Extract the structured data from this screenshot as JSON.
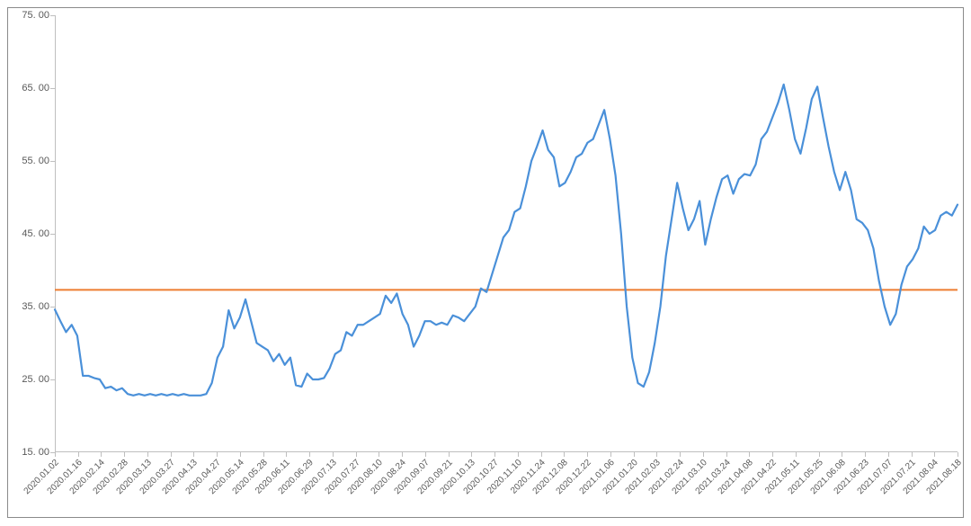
{
  "chart": {
    "type": "line",
    "background_color": "#ffffff",
    "border_color": "#8a8a8a",
    "axis_color": "#bfbfbf",
    "label_color": "#595959",
    "label_fontsize": 11,
    "xlabel_fontsize": 10,
    "ylim": [
      15.0,
      75.0
    ],
    "ytick_step": 10.0,
    "ytick_labels": [
      "15. 00",
      "25. 00",
      "35. 00",
      "45. 00",
      "55. 00",
      "65. 00",
      "75. 00"
    ],
    "ytick_values": [
      15,
      25,
      35,
      45,
      55,
      65,
      75
    ],
    "x_labels": [
      "2020.01.02",
      "2020.01.16",
      "2020.02.14",
      "2020.02.28",
      "2020.03.13",
      "2020.03.27",
      "2020.04.13",
      "2020.04.27",
      "2020.05.14",
      "2020.05.28",
      "2020.06.11",
      "2020.06.29",
      "2020.07.13",
      "2020.07.27",
      "2020.08.10",
      "2020.08.24",
      "2020.09.07",
      "2020.09.21",
      "2020.10.13",
      "2020.10.27",
      "2020.11.10",
      "2020.11.24",
      "2020.12.08",
      "2020.12.22",
      "2021.01.06",
      "2021.01.20",
      "2021.02.03",
      "2021.02.24",
      "2021.03.10",
      "2021.03.24",
      "2021.04.08",
      "2021.04.22",
      "2021.05.11",
      "2021.05.25",
      "2021.06.08",
      "2021.06.23",
      "2021.07.07",
      "2021.07.21",
      "2021.08.04",
      "2021.08.18"
    ],
    "reference_line": {
      "value": 37.3,
      "color": "#ed7d31",
      "width": 2
    },
    "series": {
      "color": "#4a90d9",
      "width": 2.2,
      "values": [
        34.6,
        33.0,
        31.5,
        32.5,
        31.0,
        25.5,
        25.5,
        25.2,
        25.0,
        23.8,
        24.0,
        23.5,
        23.8,
        23.0,
        22.8,
        23.0,
        22.8,
        23.0,
        22.8,
        23.0,
        22.8,
        23.0,
        22.8,
        23.0,
        22.8,
        22.8,
        22.8,
        23.0,
        24.5,
        28.0,
        29.5,
        34.5,
        32.0,
        33.5,
        36.0,
        33.0,
        30.0,
        29.5,
        29.0,
        27.5,
        28.5,
        27.0,
        28.0,
        24.2,
        24.0,
        25.8,
        25.0,
        25.0,
        25.2,
        26.5,
        28.5,
        29.0,
        31.5,
        31.0,
        32.5,
        32.5,
        33.0,
        33.5,
        34.0,
        36.5,
        35.5,
        36.8,
        34.0,
        32.5,
        29.5,
        31.0,
        33.0,
        33.0,
        32.5,
        32.8,
        32.5,
        33.8,
        33.5,
        33.0,
        34.0,
        35.0,
        37.5,
        37.0,
        39.5,
        42.0,
        44.5,
        45.5,
        48.0,
        48.5,
        51.5,
        55.0,
        57.0,
        59.2,
        56.5,
        55.5,
        51.5,
        52.0,
        53.5,
        55.5,
        56.0,
        57.5,
        58.0,
        60.0,
        62.0,
        58.0,
        53.0,
        45.0,
        35.0,
        28.0,
        24.5,
        24.0,
        26.0,
        30.0,
        35.0,
        42.0,
        47.0,
        52.0,
        48.5,
        45.5,
        47.0,
        49.5,
        43.5,
        47.0,
        50.0,
        52.5,
        53.0,
        50.5,
        52.5,
        53.2,
        53.0,
        54.5,
        58.0,
        59.0,
        61.0,
        63.0,
        65.5,
        62.0,
        58.0,
        56.0,
        59.5,
        63.5,
        65.2,
        61.0,
        57.0,
        53.5,
        51.0,
        53.5,
        51.0,
        47.0,
        46.5,
        45.5,
        43.0,
        38.5,
        35.0,
        32.5,
        34.0,
        38.0,
        40.5,
        41.5,
        43.0,
        46.0,
        45.0,
        45.5,
        47.5,
        48.0,
        47.5,
        49.0
      ]
    }
  }
}
